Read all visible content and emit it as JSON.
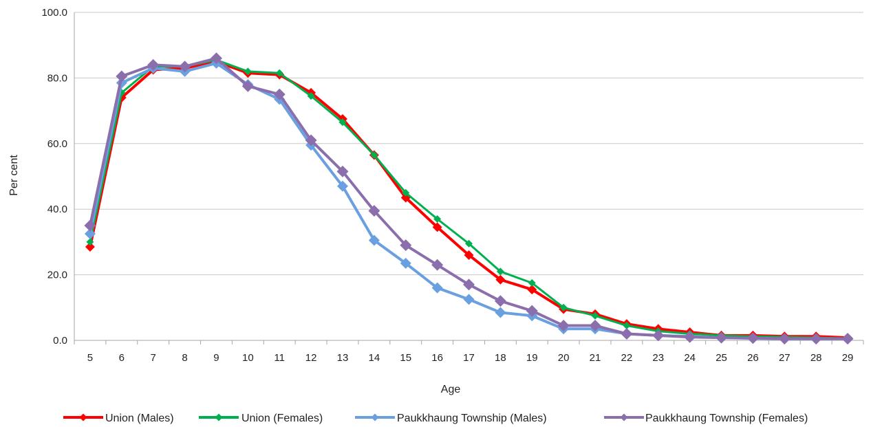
{
  "chart_data": {
    "type": "line",
    "title": "",
    "xlabel": "Age",
    "ylabel": "Per cent",
    "x": [
      5,
      6,
      7,
      8,
      9,
      10,
      11,
      12,
      13,
      14,
      15,
      16,
      17,
      18,
      19,
      20,
      21,
      22,
      23,
      24,
      25,
      26,
      27,
      28,
      29
    ],
    "ylim": [
      0,
      100
    ],
    "yticks": [
      "0.0",
      "20.0",
      "40.0",
      "60.0",
      "80.0",
      "100.0"
    ],
    "grid": true,
    "legend_position": "bottom",
    "series": [
      {
        "name": "Union (Males)",
        "color": "#ff0000",
        "marker": "diamond",
        "values": [
          28.5,
          74.0,
          82.5,
          83.0,
          85.0,
          81.5,
          81.0,
          75.5,
          67.5,
          56.5,
          43.5,
          34.5,
          26.0,
          18.5,
          15.5,
          9.5,
          8.0,
          5.0,
          3.5,
          2.5,
          1.5,
          1.5,
          1.2,
          1.2,
          0.8
        ]
      },
      {
        "name": "Union (Females)",
        "color": "#00b050",
        "marker": "diamond",
        "values": [
          30.0,
          75.5,
          83.5,
          83.5,
          85.5,
          82.0,
          81.5,
          74.5,
          66.5,
          56.5,
          45.0,
          37.0,
          29.5,
          21.0,
          17.5,
          10.0,
          7.5,
          4.5,
          2.8,
          2.0,
          1.5,
          1.2,
          1.0,
          0.8,
          0.6
        ]
      },
      {
        "name": "Paukkhaung Township (Males)",
        "color": "#6a9fe0",
        "marker": "diamond",
        "values": [
          32.5,
          78.5,
          83.0,
          82.0,
          84.5,
          78.0,
          73.5,
          59.5,
          47.0,
          30.5,
          23.5,
          16.0,
          12.5,
          8.5,
          7.5,
          3.5,
          3.5,
          2.0,
          1.5,
          1.2,
          0.8,
          0.6,
          0.5,
          0.5,
          0.5
        ]
      },
      {
        "name": "Paukkhaung Township (Females)",
        "color": "#8b6fad",
        "marker": "diamond",
        "values": [
          35.0,
          80.5,
          84.0,
          83.5,
          86.0,
          77.5,
          75.0,
          61.0,
          51.5,
          39.5,
          29.0,
          23.0,
          17.0,
          12.0,
          9.0,
          4.5,
          4.5,
          2.0,
          1.5,
          1.0,
          0.8,
          0.7,
          0.5,
          0.5,
          0.5
        ]
      }
    ]
  }
}
